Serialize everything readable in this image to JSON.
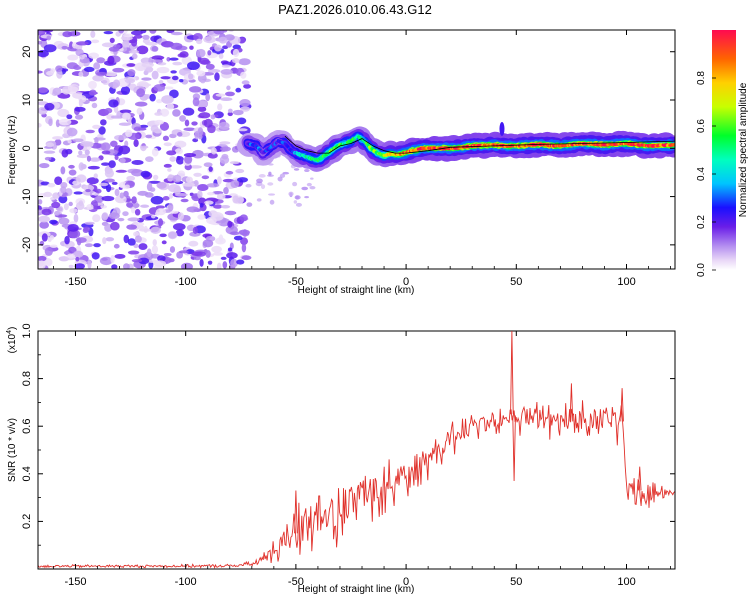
{
  "title": "PAZ1.2026.010.06.43.G12",
  "chart_data": [
    {
      "type": "heatmap",
      "name": "frequency-vs-height spectrogram",
      "xlabel": "Height of straight line (km)",
      "ylabel": "Frequency (Hz)",
      "xlim": [
        -167,
        122
      ],
      "ylim": [
        -25,
        24.5
      ],
      "xticks": [
        -150,
        -100,
        -50,
        0,
        50,
        100
      ],
      "yticks": [
        -20,
        -10,
        0,
        10,
        20
      ],
      "colorbar": {
        "label": "Normalized spectral amplitude",
        "range": [
          0.0,
          1.0
        ],
        "ticks": [
          "0.0",
          "0.2",
          "0.4",
          "0.6",
          "0.8"
        ],
        "tick_values": [
          0.0,
          0.2,
          0.4,
          0.6,
          0.8
        ]
      },
      "noise_region_x": [
        -167,
        -72
      ],
      "noise_amplitude_range": [
        0.0,
        0.2
      ],
      "signal_ridge": {
        "description": "Doppler frequency of received signal vs height",
        "x": [
          -72,
          -68,
          -65,
          -62,
          -58,
          -55,
          -52,
          -50,
          -47,
          -44,
          -40,
          -37,
          -34,
          -31,
          -28,
          -25,
          -22,
          -19,
          -16,
          -13,
          -10,
          -7,
          -4,
          -1,
          3,
          8,
          15,
          22,
          30,
          40,
          45,
          50,
          60,
          70,
          80,
          90,
          100,
          110,
          122
        ],
        "freq": [
          1.0,
          0.5,
          -1.0,
          0.0,
          1.5,
          1.0,
          -0.5,
          -1.0,
          -1.5,
          -2.0,
          -2.5,
          -1.5,
          -0.5,
          0.5,
          1.0,
          1.5,
          2.5,
          1.5,
          0.0,
          -1.0,
          -1.5,
          -1.2,
          -1.3,
          -1.0,
          -0.5,
          0.0,
          0.0,
          0.0,
          0.5,
          0.7,
          0.5,
          0.5,
          0.8,
          0.5,
          1.0,
          0.7,
          1.0,
          0.5,
          0.7
        ],
        "amplitude": [
          0.25,
          0.3,
          0.2,
          0.3,
          0.22,
          0.3,
          0.25,
          0.35,
          0.45,
          0.5,
          0.55,
          0.55,
          0.6,
          0.6,
          0.5,
          0.55,
          0.5,
          0.55,
          0.6,
          0.6,
          0.7,
          0.75,
          0.8,
          0.85,
          0.9,
          0.95,
          0.95,
          0.9,
          0.95,
          0.9,
          0.95,
          0.9,
          0.95,
          0.9,
          0.9,
          0.95,
          0.9,
          0.95,
          0.9
        ]
      },
      "fit_line": {
        "x": [
          -55,
          -50,
          -45,
          -40,
          -35,
          -30,
          -25,
          -20,
          -15,
          -10,
          -5,
          0,
          10,
          20,
          40,
          60,
          80,
          100,
          122
        ],
        "freq": [
          2.5,
          0.5,
          -0.5,
          -1.0,
          -1.0,
          0.5,
          1.0,
          2.0,
          0.5,
          -0.5,
          -1.0,
          -1.0,
          -0.5,
          0.2,
          0.5,
          0.8,
          1.0,
          1.2,
          1.5
        ]
      }
    },
    {
      "type": "line",
      "name": "snr-vs-height",
      "xlabel": "Height of straight line (km)",
      "ylabel": "SNR (10 * v/v)",
      "y_multiplier": "(x10",
      "y_multiplier_exp": "4",
      "y_multiplier_close": ")",
      "xlim": [
        -167,
        122
      ],
      "ylim": [
        0,
        1.0
      ],
      "xticks": [
        -150,
        -100,
        -50,
        0,
        50,
        100
      ],
      "yticks": [
        "0.2",
        "0.4",
        "0.6",
        "0.8",
        "1.0"
      ],
      "ytick_values": [
        0.2,
        0.4,
        0.6,
        0.8,
        1.0
      ],
      "color": "#e0302a",
      "envelope": {
        "x": [
          -167,
          -140,
          -110,
          -80,
          -70,
          -65,
          -60,
          -55,
          -50,
          -45,
          -40,
          -35,
          -30,
          -25,
          -20,
          -15,
          -10,
          -5,
          0,
          5,
          10,
          15,
          20,
          25,
          30,
          35,
          40,
          45,
          48,
          50,
          55,
          60,
          65,
          70,
          75,
          80,
          85,
          90,
          95,
          98,
          100,
          103,
          106,
          110,
          115,
          122
        ],
        "mean": [
          0.012,
          0.012,
          0.012,
          0.013,
          0.02,
          0.04,
          0.08,
          0.13,
          0.15,
          0.17,
          0.2,
          0.23,
          0.26,
          0.28,
          0.3,
          0.33,
          0.36,
          0.38,
          0.41,
          0.44,
          0.47,
          0.51,
          0.55,
          0.58,
          0.6,
          0.62,
          0.63,
          0.64,
          0.65,
          0.64,
          0.64,
          0.64,
          0.64,
          0.63,
          0.62,
          0.63,
          0.64,
          0.64,
          0.63,
          0.62,
          0.33,
          0.34,
          0.33,
          0.32,
          0.33,
          0.32
        ],
        "spread": [
          0.005,
          0.005,
          0.005,
          0.006,
          0.01,
          0.02,
          0.06,
          0.08,
          0.09,
          0.1,
          0.1,
          0.1,
          0.1,
          0.09,
          0.09,
          0.08,
          0.08,
          0.07,
          0.07,
          0.06,
          0.06,
          0.05,
          0.05,
          0.05,
          0.04,
          0.04,
          0.04,
          0.04,
          0.04,
          0.05,
          0.05,
          0.06,
          0.06,
          0.06,
          0.07,
          0.07,
          0.07,
          0.07,
          0.07,
          0.06,
          0.03,
          0.04,
          0.04,
          0.04,
          0.03,
          0.02
        ]
      },
      "spikes": [
        {
          "x": 48,
          "y": 1.0
        },
        {
          "x": 49,
          "y": 0.37
        },
        {
          "x": 98,
          "y": 0.76
        },
        {
          "x": 106,
          "y": 0.43
        },
        {
          "x": -50,
          "y": 0.33
        },
        {
          "x": 75,
          "y": 0.78
        }
      ]
    }
  ]
}
